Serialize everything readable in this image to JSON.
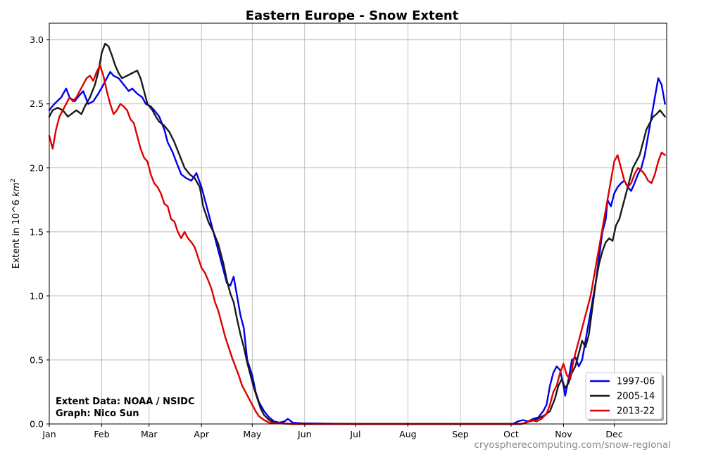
{
  "chart_data": {
    "type": "line",
    "title": "Eastern Europe - Snow Extent",
    "ylabel": "Extent in 10^6 km²",
    "xlabel": "",
    "x_unit": "day of year",
    "xlim": [
      1,
      366
    ],
    "ylim": [
      0,
      3.13
    ],
    "grid": true,
    "legend_position": "bottom-right",
    "x_ticks": [
      {
        "day": 1,
        "label": "Jan"
      },
      {
        "day": 32,
        "label": "Feb"
      },
      {
        "day": 60,
        "label": "Mar"
      },
      {
        "day": 91,
        "label": "Apr"
      },
      {
        "day": 121,
        "label": "May"
      },
      {
        "day": 152,
        "label": "Jun"
      },
      {
        "day": 182,
        "label": "Jul"
      },
      {
        "day": 213,
        "label": "Aug"
      },
      {
        "day": 244,
        "label": "Sep"
      },
      {
        "day": 274,
        "label": "Oct"
      },
      {
        "day": 305,
        "label": "Nov"
      },
      {
        "day": 335,
        "label": "Dec"
      }
    ],
    "y_ticks": [
      {
        "value": 0,
        "label": "0.0"
      },
      {
        "value": 0.5,
        "label": "0.5"
      },
      {
        "value": 1.0,
        "label": "1.0"
      },
      {
        "value": 1.5,
        "label": "1.5"
      },
      {
        "value": 2.0,
        "label": "2.0"
      },
      {
        "value": 2.5,
        "label": "2.5"
      },
      {
        "value": 3.0,
        "label": "3.0"
      }
    ],
    "series": [
      {
        "name": "1997-06",
        "color": "#0000ee",
        "points": [
          [
            1,
            2.45
          ],
          [
            4,
            2.5
          ],
          [
            8,
            2.55
          ],
          [
            11,
            2.62
          ],
          [
            13,
            2.55
          ],
          [
            16,
            2.52
          ],
          [
            19,
            2.57
          ],
          [
            21,
            2.6
          ],
          [
            24,
            2.5
          ],
          [
            27,
            2.52
          ],
          [
            30,
            2.58
          ],
          [
            33,
            2.65
          ],
          [
            35,
            2.7
          ],
          [
            37,
            2.75
          ],
          [
            39,
            2.72
          ],
          [
            42,
            2.7
          ],
          [
            45,
            2.65
          ],
          [
            48,
            2.6
          ],
          [
            50,
            2.62
          ],
          [
            53,
            2.58
          ],
          [
            56,
            2.55
          ],
          [
            58,
            2.5
          ],
          [
            61,
            2.48
          ],
          [
            63,
            2.45
          ],
          [
            66,
            2.4
          ],
          [
            69,
            2.3
          ],
          [
            71,
            2.2
          ],
          [
            74,
            2.12
          ],
          [
            76,
            2.05
          ],
          [
            79,
            1.95
          ],
          [
            82,
            1.92
          ],
          [
            85,
            1.9
          ],
          [
            88,
            1.96
          ],
          [
            91,
            1.85
          ],
          [
            94,
            1.7
          ],
          [
            97,
            1.55
          ],
          [
            100,
            1.4
          ],
          [
            103,
            1.25
          ],
          [
            106,
            1.1
          ],
          [
            108,
            1.08
          ],
          [
            110,
            1.15
          ],
          [
            112,
            1.0
          ],
          [
            114,
            0.85
          ],
          [
            116,
            0.75
          ],
          [
            118,
            0.5
          ],
          [
            121,
            0.38
          ],
          [
            123,
            0.25
          ],
          [
            125,
            0.17
          ],
          [
            128,
            0.1
          ],
          [
            131,
            0.05
          ],
          [
            134,
            0.02
          ],
          [
            137,
            0.01
          ],
          [
            140,
            0.02
          ],
          [
            142,
            0.04
          ],
          [
            145,
            0.01
          ],
          [
            150,
            0.005
          ],
          [
            180,
            0.0
          ],
          [
            230,
            0.0
          ],
          [
            275,
            0.0
          ],
          [
            278,
            0.02
          ],
          [
            281,
            0.03
          ],
          [
            284,
            0.02
          ],
          [
            287,
            0.04
          ],
          [
            290,
            0.05
          ],
          [
            293,
            0.1
          ],
          [
            295,
            0.15
          ],
          [
            297,
            0.3
          ],
          [
            299,
            0.4
          ],
          [
            301,
            0.45
          ],
          [
            303,
            0.42
          ],
          [
            305,
            0.3
          ],
          [
            306,
            0.22
          ],
          [
            308,
            0.35
          ],
          [
            310,
            0.5
          ],
          [
            312,
            0.52
          ],
          [
            314,
            0.45
          ],
          [
            316,
            0.5
          ],
          [
            318,
            0.65
          ],
          [
            320,
            0.8
          ],
          [
            322,
            0.95
          ],
          [
            324,
            1.1
          ],
          [
            326,
            1.3
          ],
          [
            328,
            1.5
          ],
          [
            330,
            1.6
          ],
          [
            331,
            1.75
          ],
          [
            333,
            1.7
          ],
          [
            335,
            1.8
          ],
          [
            337,
            1.85
          ],
          [
            339,
            1.88
          ],
          [
            341,
            1.9
          ],
          [
            343,
            1.85
          ],
          [
            345,
            1.82
          ],
          [
            347,
            1.88
          ],
          [
            349,
            1.95
          ],
          [
            351,
            2.0
          ],
          [
            353,
            2.1
          ],
          [
            355,
            2.25
          ],
          [
            357,
            2.4
          ],
          [
            359,
            2.55
          ],
          [
            361,
            2.7
          ],
          [
            363,
            2.65
          ],
          [
            365,
            2.5
          ]
        ]
      },
      {
        "name": "2005-14",
        "color": "#1a1a1a",
        "points": [
          [
            1,
            2.4
          ],
          [
            3,
            2.45
          ],
          [
            6,
            2.47
          ],
          [
            9,
            2.45
          ],
          [
            12,
            2.4
          ],
          [
            14,
            2.42
          ],
          [
            17,
            2.45
          ],
          [
            20,
            2.42
          ],
          [
            22,
            2.48
          ],
          [
            25,
            2.55
          ],
          [
            28,
            2.65
          ],
          [
            30,
            2.75
          ],
          [
            32,
            2.9
          ],
          [
            34,
            2.97
          ],
          [
            36,
            2.95
          ],
          [
            38,
            2.88
          ],
          [
            40,
            2.8
          ],
          [
            42,
            2.74
          ],
          [
            44,
            2.7
          ],
          [
            47,
            2.72
          ],
          [
            50,
            2.74
          ],
          [
            53,
            2.76
          ],
          [
            55,
            2.7
          ],
          [
            57,
            2.6
          ],
          [
            59,
            2.5
          ],
          [
            62,
            2.45
          ],
          [
            64,
            2.4
          ],
          [
            66,
            2.36
          ],
          [
            69,
            2.33
          ],
          [
            72,
            2.28
          ],
          [
            75,
            2.2
          ],
          [
            78,
            2.1
          ],
          [
            81,
            2.0
          ],
          [
            84,
            1.95
          ],
          [
            87,
            1.92
          ],
          [
            90,
            1.85
          ],
          [
            92,
            1.7
          ],
          [
            95,
            1.58
          ],
          [
            98,
            1.5
          ],
          [
            101,
            1.4
          ],
          [
            104,
            1.25
          ],
          [
            106,
            1.12
          ],
          [
            108,
            1.02
          ],
          [
            110,
            0.95
          ],
          [
            112,
            0.82
          ],
          [
            114,
            0.7
          ],
          [
            116,
            0.6
          ],
          [
            118,
            0.48
          ],
          [
            120,
            0.38
          ],
          [
            122,
            0.28
          ],
          [
            124,
            0.2
          ],
          [
            126,
            0.12
          ],
          [
            128,
            0.07
          ],
          [
            131,
            0.03
          ],
          [
            134,
            0.01
          ],
          [
            138,
            0.005
          ],
          [
            145,
            0.0
          ],
          [
            200,
            0.0
          ],
          [
            280,
            0.0
          ],
          [
            285,
            0.02
          ],
          [
            288,
            0.03
          ],
          [
            291,
            0.05
          ],
          [
            294,
            0.07
          ],
          [
            297,
            0.1
          ],
          [
            300,
            0.2
          ],
          [
            302,
            0.3
          ],
          [
            304,
            0.35
          ],
          [
            306,
            0.28
          ],
          [
            308,
            0.32
          ],
          [
            310,
            0.4
          ],
          [
            312,
            0.45
          ],
          [
            314,
            0.55
          ],
          [
            316,
            0.65
          ],
          [
            318,
            0.6
          ],
          [
            320,
            0.7
          ],
          [
            322,
            0.9
          ],
          [
            324,
            1.1
          ],
          [
            326,
            1.25
          ],
          [
            328,
            1.35
          ],
          [
            330,
            1.42
          ],
          [
            332,
            1.45
          ],
          [
            334,
            1.43
          ],
          [
            336,
            1.55
          ],
          [
            338,
            1.6
          ],
          [
            340,
            1.7
          ],
          [
            342,
            1.8
          ],
          [
            344,
            1.9
          ],
          [
            346,
            2.0
          ],
          [
            348,
            2.05
          ],
          [
            350,
            2.1
          ],
          [
            352,
            2.2
          ],
          [
            354,
            2.3
          ],
          [
            356,
            2.35
          ],
          [
            358,
            2.4
          ],
          [
            360,
            2.42
          ],
          [
            362,
            2.45
          ],
          [
            365,
            2.4
          ]
        ]
      },
      {
        "name": "2013-22",
        "color": "#dd0000",
        "points": [
          [
            1,
            2.25
          ],
          [
            3,
            2.15
          ],
          [
            5,
            2.3
          ],
          [
            7,
            2.4
          ],
          [
            9,
            2.45
          ],
          [
            11,
            2.5
          ],
          [
            13,
            2.55
          ],
          [
            15,
            2.52
          ],
          [
            17,
            2.55
          ],
          [
            19,
            2.6
          ],
          [
            21,
            2.65
          ],
          [
            23,
            2.7
          ],
          [
            25,
            2.72
          ],
          [
            27,
            2.68
          ],
          [
            29,
            2.75
          ],
          [
            31,
            2.8
          ],
          [
            33,
            2.72
          ],
          [
            35,
            2.6
          ],
          [
            37,
            2.5
          ],
          [
            39,
            2.42
          ],
          [
            41,
            2.45
          ],
          [
            43,
            2.5
          ],
          [
            45,
            2.48
          ],
          [
            47,
            2.45
          ],
          [
            49,
            2.38
          ],
          [
            51,
            2.35
          ],
          [
            53,
            2.25
          ],
          [
            55,
            2.15
          ],
          [
            57,
            2.08
          ],
          [
            59,
            2.05
          ],
          [
            61,
            1.95
          ],
          [
            63,
            1.88
          ],
          [
            65,
            1.85
          ],
          [
            67,
            1.8
          ],
          [
            69,
            1.72
          ],
          [
            71,
            1.7
          ],
          [
            73,
            1.6
          ],
          [
            75,
            1.58
          ],
          [
            77,
            1.5
          ],
          [
            79,
            1.45
          ],
          [
            81,
            1.5
          ],
          [
            83,
            1.45
          ],
          [
            85,
            1.42
          ],
          [
            87,
            1.38
          ],
          [
            89,
            1.3
          ],
          [
            91,
            1.22
          ],
          [
            93,
            1.18
          ],
          [
            95,
            1.12
          ],
          [
            97,
            1.05
          ],
          [
            99,
            0.95
          ],
          [
            101,
            0.88
          ],
          [
            103,
            0.78
          ],
          [
            105,
            0.68
          ],
          [
            107,
            0.6
          ],
          [
            109,
            0.52
          ],
          [
            111,
            0.45
          ],
          [
            113,
            0.38
          ],
          [
            115,
            0.3
          ],
          [
            117,
            0.25
          ],
          [
            119,
            0.2
          ],
          [
            121,
            0.15
          ],
          [
            123,
            0.1
          ],
          [
            125,
            0.06
          ],
          [
            128,
            0.03
          ],
          [
            131,
            0.01
          ],
          [
            135,
            0.005
          ],
          [
            145,
            0.0
          ],
          [
            210,
            0.0
          ],
          [
            280,
            0.0
          ],
          [
            283,
            0.01
          ],
          [
            286,
            0.03
          ],
          [
            289,
            0.02
          ],
          [
            292,
            0.04
          ],
          [
            295,
            0.08
          ],
          [
            297,
            0.15
          ],
          [
            299,
            0.25
          ],
          [
            301,
            0.3
          ],
          [
            303,
            0.4
          ],
          [
            305,
            0.47
          ],
          [
            307,
            0.38
          ],
          [
            309,
            0.35
          ],
          [
            311,
            0.5
          ],
          [
            313,
            0.6
          ],
          [
            315,
            0.7
          ],
          [
            317,
            0.8
          ],
          [
            319,
            0.9
          ],
          [
            321,
            1.0
          ],
          [
            323,
            1.15
          ],
          [
            325,
            1.3
          ],
          [
            327,
            1.45
          ],
          [
            329,
            1.6
          ],
          [
            331,
            1.75
          ],
          [
            333,
            1.9
          ],
          [
            335,
            2.05
          ],
          [
            337,
            2.1
          ],
          [
            339,
            2.0
          ],
          [
            341,
            1.9
          ],
          [
            343,
            1.85
          ],
          [
            345,
            1.88
          ],
          [
            347,
            1.95
          ],
          [
            349,
            2.0
          ],
          [
            351,
            1.98
          ],
          [
            353,
            1.95
          ],
          [
            355,
            1.9
          ],
          [
            357,
            1.88
          ],
          [
            359,
            1.95
          ],
          [
            361,
            2.05
          ],
          [
            363,
            2.12
          ],
          [
            365,
            2.1
          ]
        ]
      }
    ],
    "annotations": [
      "Extent Data: NOAA / NSIDC",
      "Graph: Nico Sun"
    ],
    "source_url": "cryospherecomputing.com/snow-regional"
  }
}
